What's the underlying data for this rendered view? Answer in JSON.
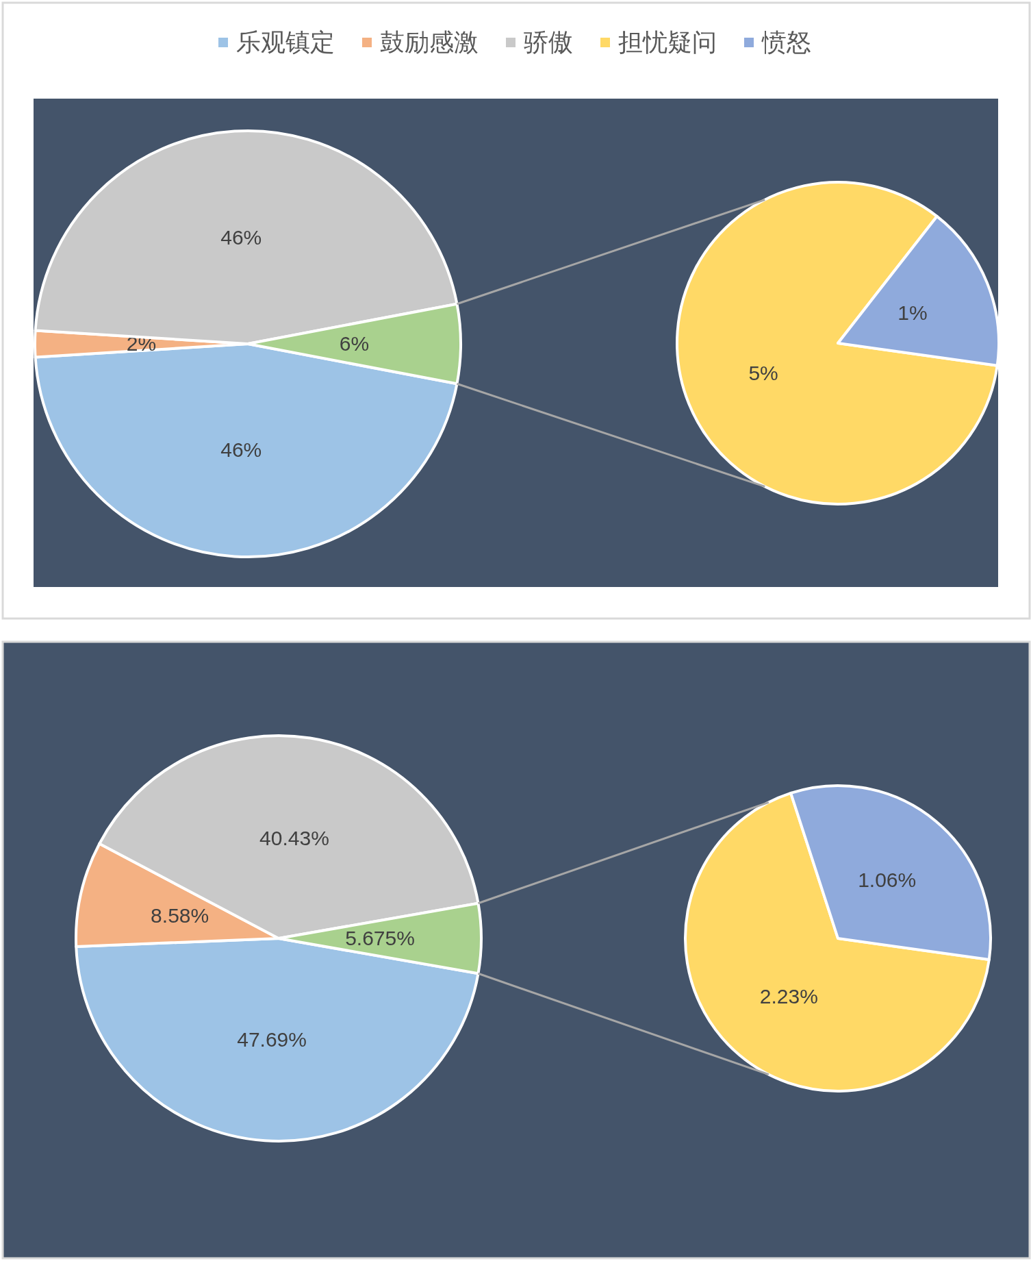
{
  "chart_data": [
    {
      "type": "pie",
      "categories": [
        "乐观镇定",
        "鼓励感激",
        "骄傲",
        null
      ],
      "values": [
        46,
        2,
        46,
        6
      ],
      "value_labels": [
        "46%",
        "2%",
        "46%",
        "6%"
      ],
      "colors": [
        "#9dc3e6",
        "#f4b183",
        "#c9c9c9",
        "#a9d18e"
      ],
      "legend": "top"
    },
    {
      "type": "pie",
      "categories": [
        "担忧疑问",
        "愤怒"
      ],
      "values": [
        5,
        1
      ],
      "value_labels": [
        "5%",
        "1%"
      ],
      "colors": [
        "#ffd966",
        "#8faadc"
      ],
      "legend": "top"
    },
    {
      "type": "pie",
      "categories": [
        null,
        null,
        null,
        null
      ],
      "values": [
        47.69,
        8.58,
        40.43,
        5.675
      ],
      "value_labels": [
        "47.69%",
        "8.58%",
        "40.43%",
        "5.675%"
      ],
      "colors": [
        "#9dc3e6",
        "#f4b183",
        "#c9c9c9",
        "#a9d18e"
      ]
    },
    {
      "type": "pie",
      "categories": [
        null,
        null
      ],
      "values": [
        2.23,
        1.06
      ],
      "value_labels": [
        "2.23%",
        "1.06%"
      ],
      "colors": [
        "#ffd966",
        "#8faadc"
      ]
    }
  ]
}
